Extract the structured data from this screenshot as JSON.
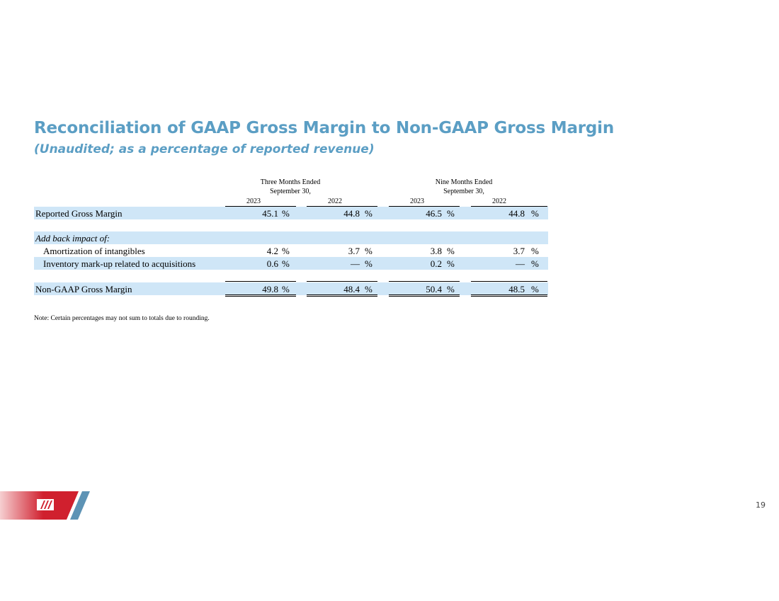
{
  "title": "Reconciliation of GAAP Gross Margin to Non-GAAP Gross Margin",
  "subtitle": "(Unaudited; as a percentage of reported revenue)",
  "headers": {
    "three_months": "Three Months Ended",
    "three_months_date": "September 30,",
    "nine_months": "Nine Months Ended",
    "nine_months_date": "September 30,",
    "years": [
      "2023",
      "2022",
      "2023",
      "2022"
    ]
  },
  "rows": [
    {
      "label": "Reported Gross Margin",
      "values": [
        "45.1",
        "44.8",
        "46.5",
        "44.8"
      ],
      "unit": "%"
    },
    {
      "label": "Add back impact of:"
    },
    {
      "label": "Amortization of intangibles",
      "values": [
        "4.2",
        "3.7",
        "3.8",
        "3.7"
      ],
      "unit": "%"
    },
    {
      "label": "Inventory mark-up related to acquisitions",
      "values": [
        "0.6",
        "—",
        "0.2",
        "—"
      ],
      "unit": "%"
    },
    {
      "label": "Non-GAAP Gross Margin",
      "values": [
        "49.8",
        "48.4",
        "50.4",
        "48.5"
      ],
      "unit": "%"
    }
  ],
  "note": "Note: Certain percentages may not sum to totals due to rounding.",
  "page_number": "19",
  "colors": {
    "title": "#5b9ec4",
    "band": "#cfe6f7",
    "logo_red": "#d0202e",
    "logo_blue": "#5d93b5"
  }
}
